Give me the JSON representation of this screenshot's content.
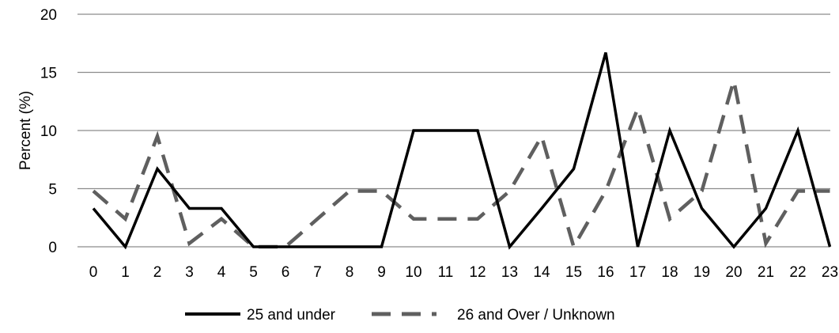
{
  "chart_data": {
    "type": "line",
    "title": "",
    "xlabel": "",
    "ylabel": "Percent (%)",
    "x": [
      "0",
      "1",
      "2",
      "3",
      "4",
      "5",
      "6",
      "7",
      "8",
      "9",
      "10",
      "11",
      "12",
      "13",
      "14",
      "15",
      "16",
      "17",
      "18",
      "19",
      "20",
      "21",
      "22",
      "23"
    ],
    "y_ticks": [
      "0",
      "5",
      "10",
      "15",
      "20"
    ],
    "ylim": [
      0,
      20
    ],
    "grid": true,
    "legend_position": "bottom",
    "series": [
      {
        "name": "25 and under",
        "color": "#000000",
        "style": "solid",
        "values": [
          3.3,
          0,
          6.7,
          3.3,
          3.3,
          0,
          0,
          0,
          0,
          0,
          10,
          10,
          10,
          0,
          3.3,
          6.7,
          16.7,
          0,
          10,
          3.3,
          0,
          3.3,
          10,
          0
        ]
      },
      {
        "name": "26 and Over / Unknown",
        "color": "#5f5f5f",
        "style": "dashed",
        "values": [
          4.8,
          2.4,
          9.5,
          0.3,
          2.4,
          0,
          0,
          2.4,
          4.8,
          4.8,
          2.4,
          2.4,
          2.4,
          4.8,
          9.5,
          0,
          4.8,
          11.9,
          2.4,
          4.8,
          14.3,
          0.3,
          4.8,
          4.8
        ]
      }
    ]
  }
}
